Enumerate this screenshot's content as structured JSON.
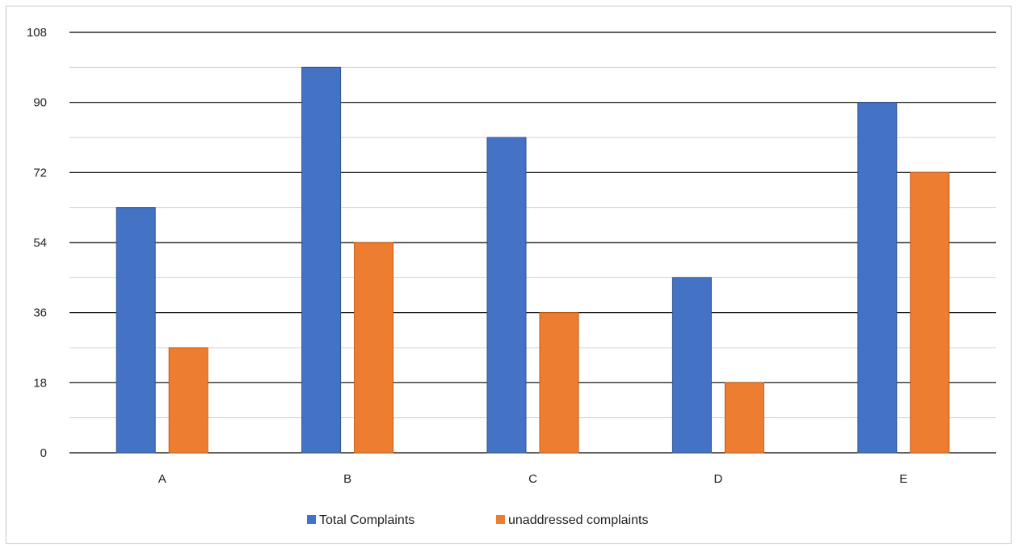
{
  "chart_data": {
    "type": "bar",
    "categories": [
      "A",
      "B",
      "C",
      "D",
      "E"
    ],
    "series": [
      {
        "name": "Total Complaints",
        "values": [
          63,
          99,
          81,
          45,
          90
        ],
        "color": "#4472c4"
      },
      {
        "name": "unaddressed complaints",
        "values": [
          27,
          54,
          36,
          18,
          72
        ],
        "color": "#ed7d31"
      }
    ],
    "ylim": [
      0,
      108
    ],
    "yticks": [
      0,
      18,
      36,
      54,
      72,
      90,
      108
    ],
    "grid": true,
    "legend": "bottom"
  }
}
